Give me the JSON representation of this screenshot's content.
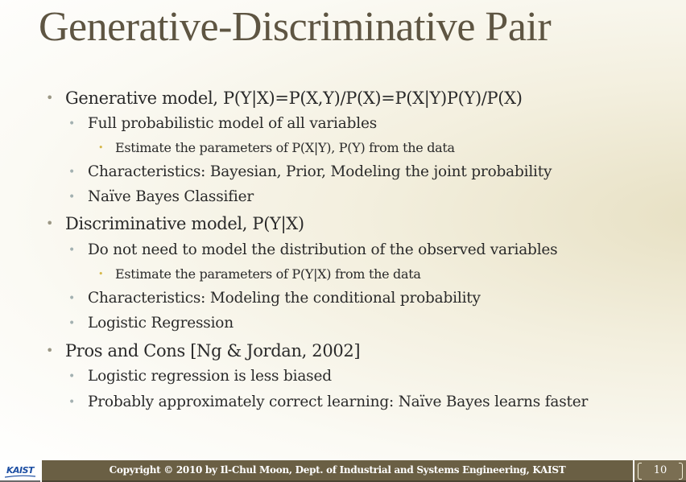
{
  "slide": {
    "title": "Generative-Discriminative Pair",
    "bullets": [
      "Generative model, P(Y|X)=P(X,Y)/P(X)=P(X|Y)P(Y)/P(X)",
      "Full probabilistic model of all variables",
      "Estimate the parameters of P(X|Y), P(Y) from the data",
      "Characteristics: Bayesian, Prior, Modeling the joint probability",
      "Naïve Bayes Classifier",
      "Discriminative model, P(Y|X)",
      "Do not need to model the distribution of the observed variables",
      "Estimate the parameters of P(Y|X) from the data",
      "Characteristics: Modeling the conditional probability",
      "Logistic Regression",
      "Pros and Cons [Ng & Jordan, 2002]",
      "Logistic regression is less biased",
      "Probably approximately correct learning: Naïve Bayes learns faster"
    ]
  },
  "footer": {
    "logo_text": "KAIST",
    "copyright": "Copyright © 2010 by Il-Chul Moon, Dept. of Industrial and Systems Engineering, KAIST",
    "page_number": "10"
  },
  "colors": {
    "title": "#5e5542",
    "footer_bar": "#6a5f44",
    "logo": "#1c4ea3"
  }
}
